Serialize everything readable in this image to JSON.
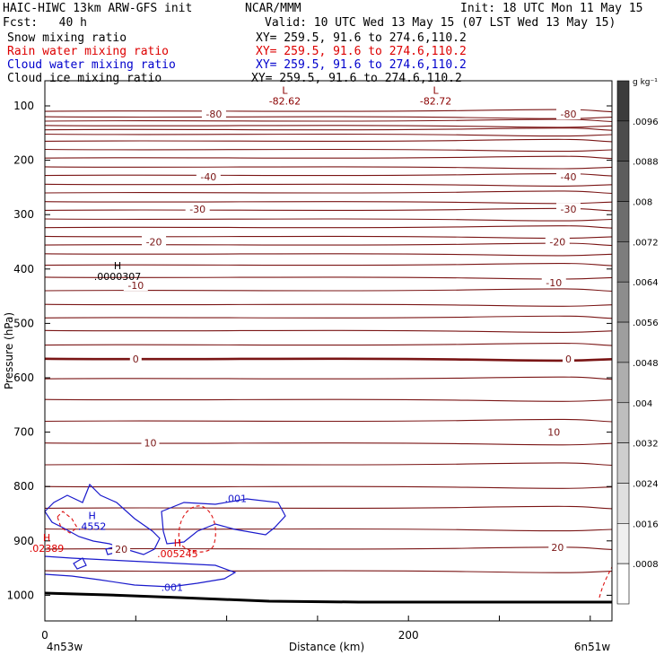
{
  "header": {
    "model": "HAIC-HIWC 13km ARW-GFS init",
    "org": "NCAR/MMM",
    "init": "Init: 18 UTC Mon 11 May 15",
    "fcst": "Fcst:   40 h",
    "valid": "Valid: 10 UTC Wed 13 May 15 (07 LST Wed 13 May 15)",
    "fields": [
      {
        "name": "Snow mixing ratio",
        "xy": "XY= 259.5, 91.6 to 274.6,110.2",
        "color": "#000000"
      },
      {
        "name": "Rain water mixing ratio",
        "xy": "XY= 259.5, 91.6 to 274.6,110.2",
        "color": "#dd0000"
      },
      {
        "name": "Cloud water mixing ratio",
        "xy": "XY= 259.5, 91.6 to 274.6,110.2",
        "color": "#0000cc"
      },
      {
        "name": "Cloud ice mixing ratio",
        "xy": "XY= 259.5, 91.6 to 274.6,110.2",
        "color": "#000000"
      }
    ]
  },
  "colorbar": {
    "unit": "g kg⁻¹",
    "labels": [
      ".0096",
      ".0088",
      ".008",
      ".0072",
      ".0064",
      ".0056",
      ".0048",
      ".004",
      ".0032",
      ".0024",
      ".0016",
      ".0008"
    ]
  },
  "chart_data": {
    "type": "line",
    "ylabel": "Pressure (hPa)",
    "xlabel": "Distance (km)",
    "y_ticks": [
      "100",
      "200",
      "300",
      "400",
      "500",
      "600",
      "700",
      "800",
      "900",
      "1000"
    ],
    "x_ticks": [
      "0",
      "200"
    ],
    "x_endpoints": [
      "4n53w",
      "6n51w"
    ],
    "temperature_labels": [
      {
        "text": "-80",
        "x": 93,
        "p": 115
      },
      {
        "text": "-80",
        "x": 288,
        "p": 115
      },
      {
        "text": "-40",
        "x": 90,
        "p": 230
      },
      {
        "text": "-40",
        "x": 288,
        "p": 230
      },
      {
        "text": "-30",
        "x": 84,
        "p": 290
      },
      {
        "text": "-30",
        "x": 288,
        "p": 290
      },
      {
        "text": "-20",
        "x": 60,
        "p": 350
      },
      {
        "text": "-20",
        "x": 282,
        "p": 350
      },
      {
        "text": "-10",
        "x": 50,
        "p": 430
      },
      {
        "text": "-10",
        "x": 280,
        "p": 425
      },
      {
        "text": "0",
        "x": 50,
        "p": 565
      },
      {
        "text": "0",
        "x": 288,
        "p": 565
      },
      {
        "text": "10",
        "x": 58,
        "p": 720
      },
      {
        "text": "10",
        "x": 280,
        "p": 700
      },
      {
        "text": "20",
        "x": 42,
        "p": 915
      },
      {
        "text": "20",
        "x": 282,
        "p": 912
      }
    ],
    "extrema": [
      {
        "label": "L",
        "value": "-82.62",
        "x": 132,
        "p": 78,
        "color": "#8b0000"
      },
      {
        "label": "L",
        "value": "-82.72",
        "x": 215,
        "p": 78,
        "color": "#8b0000"
      },
      {
        "label": "H",
        "value": ".0000307",
        "x": 40,
        "p": 400,
        "color": "#000000"
      },
      {
        "label": "H",
        "value": ".4552",
        "x": 26,
        "p": 860,
        "color": "#0000cc"
      },
      {
        "label": "H",
        "value": ".02389",
        "x": 1,
        "p": 900,
        "color": "#dd0000"
      },
      {
        "label": "H",
        "value": ".005245",
        "x": 73,
        "p": 910,
        "color": "#dd0000"
      }
    ],
    "cloud_water_labels": [
      {
        "text": ".001",
        "x": 105,
        "p": 822
      },
      {
        "text": ".001",
        "x": 70,
        "p": 985
      }
    ]
  }
}
